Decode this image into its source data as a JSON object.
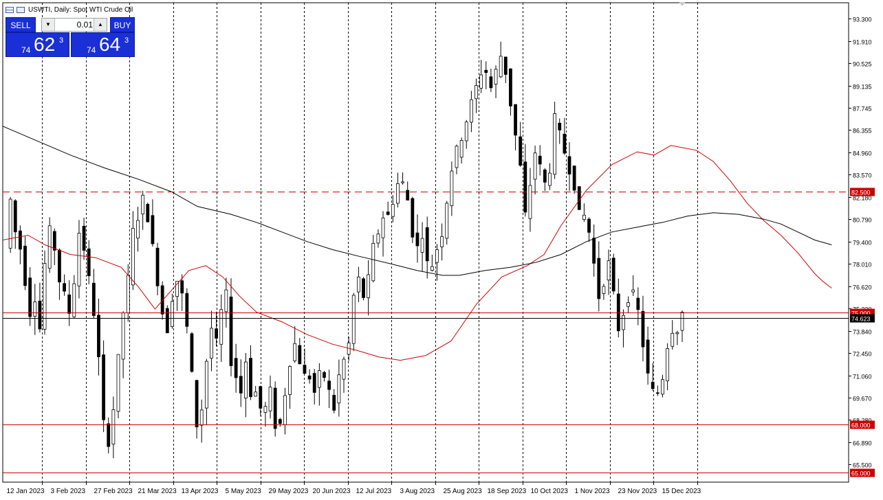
{
  "header": {
    "title": "USWTI, Daily:  Spot WTI Crude Oil"
  },
  "trade_panel": {
    "sell_label": "SELL",
    "buy_label": "BUY",
    "quantity": "0.01",
    "sell_price_prefix": "74",
    "sell_price_big": "62",
    "sell_price_sup": "3",
    "buy_price_prefix": "74",
    "buy_price_big": "64",
    "buy_price_sup": "3"
  },
  "chart_data": {
    "type": "candlestick",
    "symbol": "USWTI",
    "timeframe": "Daily",
    "y_ticks": [
      "93.300",
      "91.910",
      "90.525",
      "89.135",
      "87.745",
      "86.355",
      "84.960",
      "83.570",
      "82.180",
      "80.790",
      "79.400",
      "78.010",
      "76.620",
      "75.230",
      "73.840",
      "72.450",
      "71.060",
      "69.670",
      "68.280",
      "66.890",
      "65.500"
    ],
    "x_labels": [
      "12 Jan 2023",
      "3 Feb 2023",
      "27 Feb 2023",
      "21 Mar 2023",
      "13 Apr 2023",
      "5 May 2023",
      "29 May 2023",
      "20 Jun 2023",
      "12 Jul 2023",
      "3 Aug 2023",
      "25 Aug 2023",
      "18 Sep 2023",
      "10 Oct 2023",
      "1 Nov 2023",
      "23 Nov 2023",
      "15 Dec 2023"
    ],
    "ylim": [
      64.4,
      94.3
    ],
    "current_price": "74.623",
    "horizontal_levels": [
      {
        "value": 82.5,
        "label": "82.500",
        "style": "dashed",
        "color": "#cc0000"
      },
      {
        "value": 75.0,
        "label": "75.000",
        "style": "solid",
        "color": "#cc0000"
      },
      {
        "value": 68.0,
        "label": "68.000",
        "style": "solid",
        "color": "#cc0000"
      },
      {
        "value": 65.0,
        "label": "65.000",
        "style": "solid",
        "color": "#cc0000"
      },
      {
        "value": 74.623,
        "label": "74.623",
        "style": "solid",
        "color": "#000000"
      }
    ],
    "moving_averages": [
      {
        "color": "#cc0000",
        "period_hint": "short",
        "points": [
          [
            0,
            79.5
          ],
          [
            0.03,
            79.8
          ],
          [
            0.05,
            79.2
          ],
          [
            0.08,
            78.6
          ],
          [
            0.11,
            78.4
          ],
          [
            0.14,
            77.8
          ],
          [
            0.16,
            76.6
          ],
          [
            0.18,
            75.2
          ],
          [
            0.2,
            76.4
          ],
          [
            0.22,
            77.6
          ],
          [
            0.24,
            77.9
          ],
          [
            0.26,
            77.2
          ],
          [
            0.28,
            76.0
          ],
          [
            0.3,
            75.0
          ],
          [
            0.33,
            74.4
          ],
          [
            0.36,
            73.6
          ],
          [
            0.39,
            73.0
          ],
          [
            0.42,
            72.6
          ],
          [
            0.445,
            72.2
          ],
          [
            0.47,
            72.0
          ],
          [
            0.5,
            72.3
          ],
          [
            0.53,
            73.2
          ],
          [
            0.56,
            75.5
          ],
          [
            0.59,
            77.2
          ],
          [
            0.62,
            77.9
          ],
          [
            0.64,
            78.6
          ],
          [
            0.66,
            80.4
          ],
          [
            0.69,
            82.6
          ],
          [
            0.72,
            84.2
          ],
          [
            0.75,
            85.0
          ],
          [
            0.77,
            84.8
          ],
          [
            0.79,
            85.4
          ],
          [
            0.82,
            85.1
          ],
          [
            0.84,
            84.4
          ],
          [
            0.86,
            83.2
          ],
          [
            0.88,
            81.8
          ],
          [
            0.9,
            80.7
          ],
          [
            0.92,
            79.8
          ],
          [
            0.94,
            78.7
          ],
          [
            0.96,
            77.4
          ],
          [
            0.97,
            76.9
          ],
          [
            0.98,
            76.5
          ]
        ]
      },
      {
        "color": "#000000",
        "period_hint": "long",
        "points": [
          [
            0,
            86.6
          ],
          [
            0.04,
            85.7
          ],
          [
            0.08,
            84.8
          ],
          [
            0.12,
            84.0
          ],
          [
            0.16,
            83.3
          ],
          [
            0.2,
            82.5
          ],
          [
            0.23,
            81.6
          ],
          [
            0.27,
            81.1
          ],
          [
            0.3,
            80.6
          ],
          [
            0.33,
            80.0
          ],
          [
            0.36,
            79.4
          ],
          [
            0.39,
            78.9
          ],
          [
            0.42,
            78.5
          ],
          [
            0.46,
            78.0
          ],
          [
            0.49,
            77.6
          ],
          [
            0.52,
            77.3
          ],
          [
            0.54,
            77.3
          ],
          [
            0.57,
            77.6
          ],
          [
            0.6,
            77.8
          ],
          [
            0.63,
            78.1
          ],
          [
            0.66,
            78.6
          ],
          [
            0.69,
            79.4
          ],
          [
            0.72,
            80.0
          ],
          [
            0.75,
            80.3
          ],
          [
            0.78,
            80.6
          ],
          [
            0.81,
            81.0
          ],
          [
            0.84,
            81.2
          ],
          [
            0.87,
            81.1
          ],
          [
            0.9,
            80.8
          ],
          [
            0.92,
            80.5
          ],
          [
            0.94,
            80.0
          ],
          [
            0.96,
            79.5
          ],
          [
            0.98,
            79.2
          ]
        ]
      }
    ]
  },
  "colors": {
    "axis_bg": "#ffffff",
    "grid": "#000000",
    "level_red": "#cc0000",
    "price_tag_red": "#cc0000",
    "candle_up": "#ffffff",
    "candle_down": "#000000"
  }
}
